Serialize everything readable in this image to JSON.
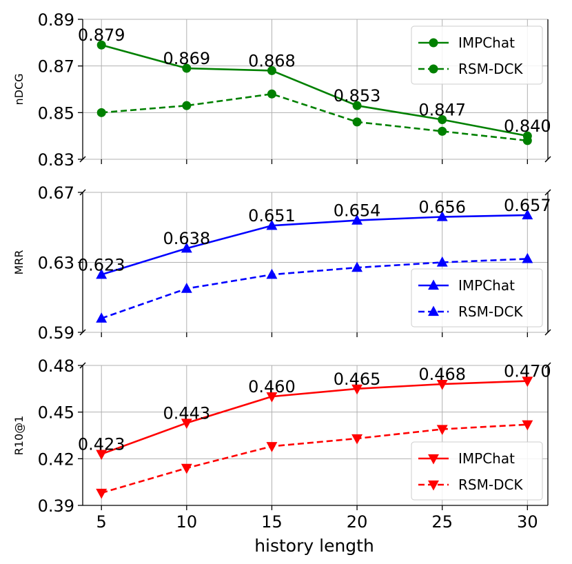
{
  "xlabel": "history length",
  "x_ticks": [
    "5",
    "10",
    "15",
    "20",
    "25",
    "30"
  ],
  "chart_data": [
    {
      "type": "line",
      "ylabel": "nDCG",
      "ylim": [
        0.83,
        0.89
      ],
      "y_ticks": [
        "0.83",
        "0.85",
        "0.87",
        "0.89"
      ],
      "y_tick_values": [
        0.83,
        0.85,
        0.87,
        0.89
      ],
      "x": [
        5,
        10,
        15,
        20,
        25,
        30
      ],
      "color": "#008000",
      "marker": "circle",
      "legend_position": "top-right",
      "series": [
        {
          "name": "IMPChat",
          "style": "solid",
          "values": [
            0.879,
            0.869,
            0.868,
            0.853,
            0.847,
            0.84
          ],
          "labels": [
            "0.879",
            "0.869",
            "0.868",
            "0.853",
            "0.847",
            "0.840"
          ]
        },
        {
          "name": "RSM-DCK",
          "style": "dashed",
          "values": [
            0.85,
            0.853,
            0.858,
            0.846,
            0.842,
            0.838
          ]
        }
      ]
    },
    {
      "type": "line",
      "ylabel": "MRR",
      "ylim": [
        0.59,
        0.67
      ],
      "y_ticks": [
        "0.59",
        "0.63",
        "0.67"
      ],
      "y_tick_values": [
        0.59,
        0.63,
        0.67
      ],
      "x": [
        5,
        10,
        15,
        20,
        25,
        30
      ],
      "color": "#0000ff",
      "marker": "triangle-up",
      "legend_position": "bottom-right",
      "series": [
        {
          "name": "IMPChat",
          "style": "solid",
          "values": [
            0.623,
            0.638,
            0.651,
            0.654,
            0.656,
            0.657
          ],
          "labels": [
            "0.623",
            "0.638",
            "0.651",
            "0.654",
            "0.656",
            "0.657"
          ]
        },
        {
          "name": "RSM-DCK",
          "style": "dashed",
          "values": [
            0.598,
            0.615,
            0.623,
            0.627,
            0.63,
            0.632
          ]
        }
      ]
    },
    {
      "type": "line",
      "ylabel": "R10@1",
      "ylim": [
        0.39,
        0.48
      ],
      "y_ticks": [
        "0.39",
        "0.42",
        "0.45",
        "0.48"
      ],
      "y_tick_values": [
        0.39,
        0.42,
        0.45,
        0.48
      ],
      "x": [
        5,
        10,
        15,
        20,
        25,
        30
      ],
      "color": "#ff0000",
      "marker": "triangle-down",
      "legend_position": "bottom-right",
      "series": [
        {
          "name": "IMPChat",
          "style": "solid",
          "values": [
            0.423,
            0.443,
            0.46,
            0.465,
            0.468,
            0.47
          ],
          "labels": [
            "0.423",
            "0.443",
            "0.460",
            "0.465",
            "0.468",
            "0.470"
          ]
        },
        {
          "name": "RSM-DCK",
          "style": "dashed",
          "values": [
            0.398,
            0.414,
            0.428,
            0.433,
            0.439,
            0.442
          ]
        }
      ]
    }
  ]
}
